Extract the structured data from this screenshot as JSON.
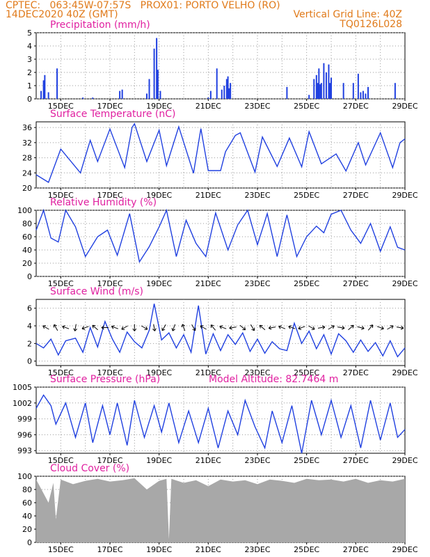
{
  "header": {
    "line1_left": "CPTEC:   063:45W-07:57S   PROX01: PORTO VELHO (RO)",
    "line2_left": "14DEC2020 40Z (GMT)",
    "line2_right": "Vertical Grid Line: 40Z",
    "line3_right": "TQ0126L028"
  },
  "colors": {
    "header": "#e07a1a",
    "title": "#e020a0",
    "line": "#2040e0",
    "bar": "#2040e0",
    "cloud": "#a8a8a8"
  },
  "chart_data": [
    {
      "type": "bar",
      "title": "Precipitation (mm/h)",
      "x_tick_labels": [
        "15DEC",
        "17DEC",
        "19DEC",
        "21DEC",
        "23DEC",
        "25DEC",
        "27DEC",
        "29DEC"
      ],
      "y_ticks": [
        0,
        1,
        2,
        3,
        4,
        5
      ],
      "ylim": [
        0,
        5
      ],
      "xlim_days": [
        14.0,
        29.0
      ],
      "series": [
        {
          "values": [
            [
              14.2,
              0.6
            ],
            [
              14.3,
              1.4
            ],
            [
              14.35,
              1.8
            ],
            [
              14.5,
              0.5
            ],
            [
              14.85,
              2.3
            ],
            [
              15.9,
              0.1
            ],
            [
              16.3,
              0.1
            ],
            [
              17.4,
              0.6
            ],
            [
              17.5,
              0.7
            ],
            [
              18.5,
              0.4
            ],
            [
              18.6,
              1.5
            ],
            [
              18.8,
              3.8
            ],
            [
              18.9,
              4.6
            ],
            [
              18.95,
              2.2
            ],
            [
              19.05,
              0.6
            ],
            [
              21.0,
              0.1
            ],
            [
              21.1,
              0.6
            ],
            [
              21.35,
              2.3
            ],
            [
              21.55,
              0.7
            ],
            [
              21.65,
              1.0
            ],
            [
              21.75,
              1.5
            ],
            [
              21.8,
              1.7
            ],
            [
              21.85,
              0.8
            ],
            [
              21.9,
              1.2
            ],
            [
              24.2,
              0.9
            ],
            [
              25.1,
              0.3
            ],
            [
              25.3,
              1.5
            ],
            [
              25.4,
              1.8
            ],
            [
              25.45,
              1.2
            ],
            [
              25.5,
              2.3
            ],
            [
              25.55,
              1.1
            ],
            [
              25.6,
              1.2
            ],
            [
              25.7,
              2.7
            ],
            [
              25.8,
              2.0
            ],
            [
              25.9,
              2.6
            ],
            [
              25.95,
              1.2
            ],
            [
              26.0,
              1.6
            ],
            [
              26.5,
              1.2
            ],
            [
              26.9,
              1.2
            ],
            [
              27.1,
              1.9
            ],
            [
              27.2,
              0.5
            ],
            [
              27.3,
              0.6
            ],
            [
              27.4,
              0.4
            ],
            [
              27.5,
              0.9
            ],
            [
              28.6,
              1.2
            ]
          ]
        }
      ]
    },
    {
      "type": "line",
      "title": "Surface Temperature (nC)",
      "x_tick_labels": [
        "15DEC",
        "17DEC",
        "19DEC",
        "21DEC",
        "23DEC",
        "25DEC",
        "27DEC",
        "29DEC"
      ],
      "y_ticks": [
        20,
        24,
        28,
        32,
        36
      ],
      "ylim": [
        20,
        37.5
      ],
      "series": [
        {
          "x": [
            14.0,
            14.5,
            15.0,
            15.8,
            16.2,
            16.5,
            17.0,
            17.6,
            17.9,
            18.0,
            18.5,
            19.0,
            19.3,
            19.8,
            20.4,
            20.7,
            21.0,
            21.5,
            21.7,
            22.1,
            22.3,
            22.9,
            23.2,
            23.8,
            24.3,
            24.8,
            25.1,
            25.6,
            26.2,
            26.6,
            27.1,
            27.4,
            28.0,
            28.5,
            28.8,
            29.0
          ],
          "y": [
            23.5,
            21.5,
            30.3,
            24.0,
            32.6,
            27.0,
            35.6,
            25.4,
            36.0,
            37.0,
            27.0,
            35.3,
            25.9,
            36.2,
            23.9,
            35.7,
            24.6,
            24.6,
            29.6,
            33.9,
            34.6,
            24.2,
            33.5,
            25.7,
            33.2,
            25.6,
            34.9,
            26.4,
            29.0,
            24.5,
            32.0,
            26.1,
            34.6,
            25.4,
            32.0,
            33.0
          ]
        }
      ]
    },
    {
      "type": "line",
      "title": "Relative Humidity (%)",
      "x_tick_labels": [
        "15DEC",
        "17DEC",
        "19DEC",
        "21DEC",
        "23DEC",
        "25DEC",
        "27DEC",
        "29DEC"
      ],
      "y_ticks": [
        0,
        20,
        40,
        60,
        80,
        100
      ],
      "ylim": [
        0,
        100
      ],
      "series": [
        {
          "x": [
            14.0,
            14.3,
            14.6,
            14.9,
            15.2,
            15.6,
            16.0,
            16.5,
            16.9,
            17.3,
            17.8,
            18.2,
            18.6,
            19.0,
            19.3,
            19.7,
            20.1,
            20.5,
            20.9,
            21.3,
            21.8,
            22.2,
            22.6,
            23.0,
            23.4,
            23.8,
            24.2,
            24.6,
            25.0,
            25.4,
            25.7,
            26.0,
            26.4,
            26.8,
            27.2,
            27.6,
            28.0,
            28.4,
            28.7,
            29.0
          ],
          "y": [
            70,
            100,
            58,
            52,
            100,
            75,
            30,
            60,
            70,
            32,
            95,
            22,
            45,
            75,
            100,
            30,
            85,
            50,
            30,
            96,
            40,
            78,
            100,
            48,
            95,
            30,
            93,
            30,
            60,
            76,
            66,
            94,
            100,
            70,
            50,
            80,
            38,
            75,
            44,
            40
          ]
        }
      ]
    },
    {
      "type": "line",
      "title": "Surface Wind (m/s)",
      "x_tick_labels": [
        "15DEC",
        "17DEC",
        "19DEC",
        "21DEC",
        "23DEC",
        "25DEC",
        "27DEC",
        "29DEC"
      ],
      "y_ticks": [
        0,
        2,
        4,
        6
      ],
      "ylim": [
        -0.5,
        7
      ],
      "series": [
        {
          "x": [
            14.0,
            14.3,
            14.6,
            14.9,
            15.2,
            15.6,
            15.9,
            16.2,
            16.5,
            16.8,
            17.1,
            17.4,
            17.7,
            18.0,
            18.3,
            18.6,
            18.8,
            19.1,
            19.4,
            19.7,
            20.0,
            20.3,
            20.6,
            20.9,
            21.2,
            21.5,
            21.8,
            22.1,
            22.4,
            22.7,
            23.0,
            23.3,
            23.6,
            23.9,
            24.2,
            24.5,
            24.8,
            25.1,
            25.4,
            25.7,
            26.0,
            26.3,
            26.6,
            26.9,
            27.2,
            27.5,
            27.8,
            28.1,
            28.4,
            28.7,
            29.0
          ],
          "y": [
            2.0,
            1.5,
            2.5,
            0.7,
            2.3,
            2.6,
            1.0,
            3.8,
            1.6,
            4.5,
            2.5,
            1.0,
            3.3,
            2.2,
            1.5,
            3.5,
            6.5,
            2.4,
            3.2,
            1.5,
            3.0,
            1.0,
            6.3,
            0.8,
            3.1,
            1.2,
            3.0,
            1.9,
            3.2,
            1.1,
            2.5,
            0.9,
            2.2,
            1.4,
            1.2,
            4.3,
            2.0,
            3.4,
            1.4,
            3.0,
            0.8,
            3.1,
            2.3,
            1.0,
            2.4,
            1.1,
            2.1,
            0.6,
            2.3,
            0.5,
            1.5
          ]
        }
      ],
      "wind_arrow_angles_deg": [
        210,
        240,
        200,
        100,
        160,
        220,
        180,
        200,
        150,
        90,
        30,
        80,
        120,
        110,
        250,
        60,
        210,
        230,
        200,
        170,
        40,
        60,
        220,
        170,
        200,
        200,
        160,
        30,
        350,
        330,
        10,
        320,
        15,
        310,
        20,
        330,
        10
      ]
    },
    {
      "type": "line",
      "title": "Surface Pressure (hPa)",
      "annotation": "Model Altitude: 82.7464 m",
      "x_tick_labels": [
        "15DEC",
        "17DEC",
        "19DEC",
        "21DEC",
        "23DEC",
        "25DEC",
        "27DEC",
        "29DEC"
      ],
      "y_ticks": [
        993,
        996,
        999,
        1002,
        1005
      ],
      "ylim": [
        992.5,
        1005
      ],
      "series": [
        {
          "x": [
            14.0,
            14.3,
            14.6,
            14.8,
            15.2,
            15.6,
            16.0,
            16.3,
            16.7,
            17.0,
            17.3,
            17.7,
            18.0,
            18.4,
            18.8,
            19.1,
            19.4,
            19.8,
            20.2,
            20.6,
            21.0,
            21.4,
            21.8,
            22.2,
            22.5,
            22.9,
            23.3,
            23.6,
            24.0,
            24.4,
            24.8,
            25.2,
            25.6,
            26.0,
            26.4,
            26.8,
            27.2,
            27.6,
            28.0,
            28.4,
            28.7,
            29.0
          ],
          "y": [
            1001,
            1003.5,
            1001.5,
            998,
            1002,
            995.5,
            1002,
            994.5,
            1001.5,
            996,
            1002,
            994,
            1002.5,
            995.5,
            1001.5,
            996.5,
            1002,
            994.5,
            1000.5,
            994.5,
            1001,
            993.5,
            1000.5,
            996,
            1002.5,
            997.5,
            993.5,
            1000.5,
            994.5,
            1001.5,
            992.5,
            1002.5,
            996,
            1002.5,
            995.5,
            1001.5,
            993.5,
            1002.5,
            995,
            1002,
            995.5,
            997
          ]
        }
      ]
    },
    {
      "type": "area",
      "title": "Cloud Cover (%)",
      "x_tick_labels": [
        "15DEC",
        "17DEC",
        "19DEC",
        "21DEC",
        "23DEC",
        "25DEC",
        "27DEC",
        "29DEC"
      ],
      "y_ticks": [
        0,
        20,
        40,
        60,
        80,
        100
      ],
      "ylim": [
        0,
        100
      ],
      "series": [
        {
          "x": [
            14.0,
            14.5,
            14.7,
            14.8,
            15.0,
            15.5,
            16.0,
            16.5,
            17.0,
            17.5,
            18.0,
            18.5,
            19.0,
            19.3,
            19.4,
            19.5,
            20.0,
            20.5,
            21.0,
            21.5,
            22.0,
            22.5,
            23.0,
            23.5,
            24.0,
            24.5,
            25.0,
            25.5,
            26.0,
            26.5,
            27.0,
            27.5,
            28.0,
            28.5,
            29.0
          ],
          "y": [
            95,
            60,
            90,
            35,
            95,
            88,
            93,
            96,
            92,
            94,
            97,
            80,
            93,
            96,
            5,
            96,
            90,
            94,
            85,
            95,
            92,
            94,
            88,
            95,
            93,
            90,
            96,
            94,
            95,
            92,
            96,
            90,
            94,
            92,
            96
          ]
        }
      ]
    }
  ]
}
